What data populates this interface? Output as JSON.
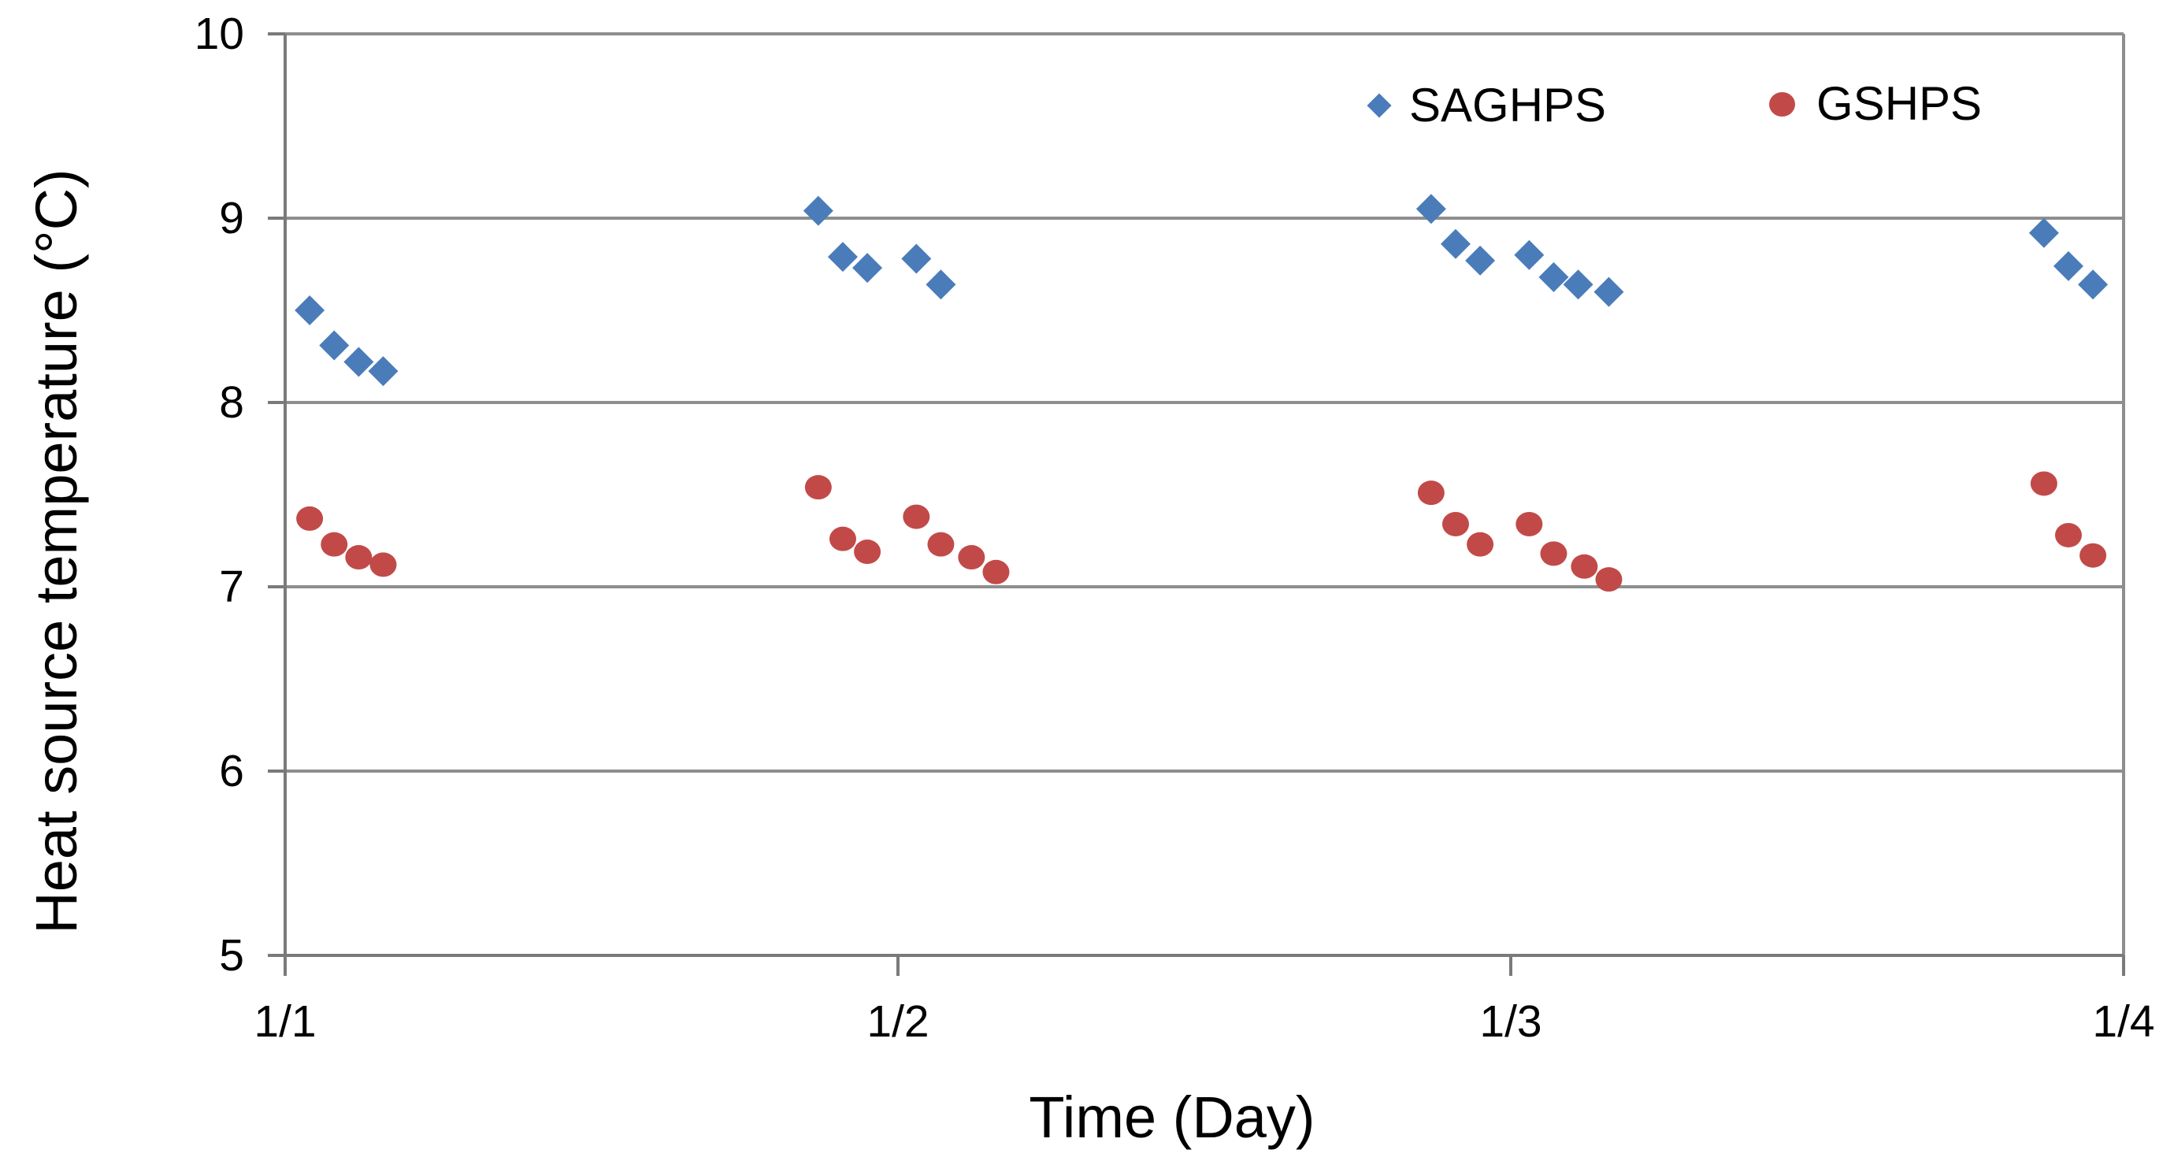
{
  "chart_data": {
    "type": "scatter",
    "title": "",
    "xlabel": "Time (Day)",
    "ylabel": "Heat source temperature (°C)",
    "xlim": [
      1,
      4
    ],
    "ylim": [
      5,
      10
    ],
    "grid": true,
    "legend_position": "top-right-inside",
    "grid_color": "#8e8e8e",
    "axis_color": "#7a7a7a",
    "x_ticks": [
      {
        "value": 1,
        "label": "1/1"
      },
      {
        "value": 2,
        "label": "1/2"
      },
      {
        "value": 3,
        "label": "1/3"
      },
      {
        "value": 4,
        "label": "1/4"
      }
    ],
    "y_ticks": [
      {
        "value": 10,
        "label": "10"
      },
      {
        "value": 9,
        "label": "9"
      },
      {
        "value": 8,
        "label": "8"
      },
      {
        "value": 7,
        "label": "7"
      },
      {
        "value": 6,
        "label": "6"
      },
      {
        "value": 5,
        "label": "5"
      }
    ],
    "series": [
      {
        "name": "SAGHPS",
        "marker": "diamond",
        "color": "#4a7cba",
        "points": [
          [
            1.04,
            8.5
          ],
          [
            1.08,
            8.31
          ],
          [
            1.12,
            8.22
          ],
          [
            1.16,
            8.17
          ],
          [
            1.87,
            9.04
          ],
          [
            1.91,
            8.79
          ],
          [
            1.95,
            8.73
          ],
          [
            2.03,
            8.78
          ],
          [
            2.07,
            8.64
          ],
          [
            2.87,
            9.05
          ],
          [
            2.91,
            8.86
          ],
          [
            2.95,
            8.77
          ],
          [
            3.03,
            8.8
          ],
          [
            3.07,
            8.68
          ],
          [
            3.11,
            8.64
          ],
          [
            3.16,
            8.6
          ],
          [
            3.87,
            8.92
          ],
          [
            3.91,
            8.74
          ],
          [
            3.95,
            8.64
          ]
        ]
      },
      {
        "name": "GSHPS",
        "marker": "circle",
        "color": "#c14a48",
        "points": [
          [
            1.04,
            7.37
          ],
          [
            1.08,
            7.23
          ],
          [
            1.12,
            7.16
          ],
          [
            1.16,
            7.12
          ],
          [
            1.87,
            7.54
          ],
          [
            1.91,
            7.26
          ],
          [
            1.95,
            7.19
          ],
          [
            2.03,
            7.38
          ],
          [
            2.07,
            7.23
          ],
          [
            2.12,
            7.16
          ],
          [
            2.16,
            7.08
          ],
          [
            2.87,
            7.51
          ],
          [
            2.91,
            7.34
          ],
          [
            2.95,
            7.23
          ],
          [
            3.03,
            7.34
          ],
          [
            3.07,
            7.18
          ],
          [
            3.12,
            7.11
          ],
          [
            3.16,
            7.04
          ],
          [
            3.87,
            7.56
          ],
          [
            3.91,
            7.28
          ],
          [
            3.95,
            7.17
          ]
        ]
      }
    ]
  }
}
